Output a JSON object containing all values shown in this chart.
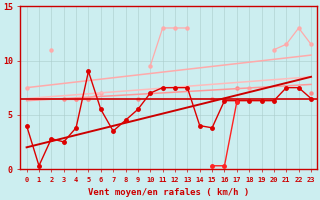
{
  "x": [
    0,
    1,
    2,
    3,
    4,
    5,
    6,
    7,
    8,
    9,
    10,
    11,
    12,
    13,
    14,
    15,
    16,
    17,
    18,
    19,
    20,
    21,
    22,
    23
  ],
  "bg_color": "#cceef0",
  "grid_color": "#aacccc",
  "xlabel": "Vent moyen/en rafales ( km/h )",
  "ylim": [
    0,
    15
  ],
  "xlim": [
    -0.5,
    23.5
  ],
  "yticks": [
    0,
    5,
    10,
    15
  ],
  "line_lp1": [
    7.5,
    null,
    11.0,
    null,
    6.5,
    6.5,
    7.0,
    null,
    null,
    null,
    9.5,
    13.0,
    13.0,
    13.0,
    null,
    null,
    6.5,
    null,
    7.5,
    null,
    11.0,
    11.5,
    13.0,
    11.5
  ],
  "line_lp2": [
    null,
    null,
    null,
    null,
    null,
    null,
    null,
    null,
    null,
    null,
    null,
    null,
    null,
    null,
    null,
    null,
    null,
    null,
    null,
    null,
    null,
    null,
    null,
    null
  ],
  "line_mp1": [
    null,
    null,
    null,
    6.5,
    6.5,
    6.5,
    null,
    null,
    null,
    6.5,
    null,
    null,
    null,
    null,
    null,
    6.5,
    null,
    7.5,
    null,
    null,
    null,
    null,
    null,
    7.0
  ],
  "trend_lp1_start": 7.5,
  "trend_lp1_end": 10.5,
  "trend_lp2_start": 6.5,
  "trend_lp2_end": 8.5,
  "trend_mp_start": 6.3,
  "trend_mp_end": 7.8,
  "trend_dark_start": 2.0,
  "trend_dark_end": 8.5,
  "flat_dark": 6.5,
  "line_red1": [
    4.0,
    0.3,
    2.8,
    2.5,
    3.8,
    9.0,
    5.5,
    3.5,
    4.5,
    5.5,
    7.0,
    7.5,
    7.5,
    7.5,
    4.0,
    3.8,
    6.3,
    6.3,
    6.3,
    6.3,
    6.3,
    7.5,
    7.5,
    6.5
  ],
  "line_red2": [
    null,
    null,
    null,
    null,
    null,
    null,
    null,
    null,
    null,
    null,
    null,
    null,
    null,
    null,
    null,
    0.3,
    0.3,
    6.2,
    null,
    null,
    null,
    null,
    null,
    null
  ],
  "color_lp1": "#ffaaaa",
  "color_lp2": "#ff9999",
  "color_mp1": "#ff8888",
  "color_trend_lp1": "#ffaaaa",
  "color_trend_lp2": "#ffbbbb",
  "color_trend_mp": "#ff9999",
  "color_trend_dark": "#cc0000",
  "color_flat": "#cc0000",
  "color_red1": "#dd0000",
  "color_red2": "#ff2222",
  "color_tick": "#cc0000",
  "color_spine": "#cc0000"
}
